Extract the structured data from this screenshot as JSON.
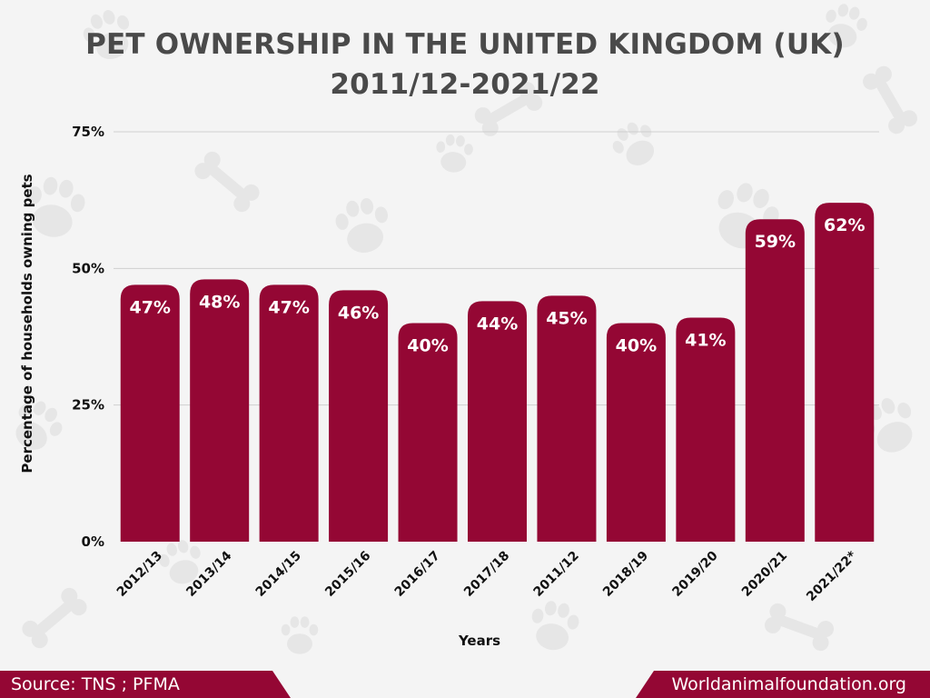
{
  "header": {
    "title_line1": "PET OWNERSHIP IN THE UNITED KINGDOM (UK)",
    "title_line2": "2011/12-2021/22"
  },
  "footer": {
    "source": "Source: TNS ; PFMA",
    "site": "Worldanimalfoundation.org"
  },
  "colors": {
    "bar": "#940734",
    "gridline": "#cfcfcf",
    "background": "#f4f4f4",
    "paw_watermark": "#e6e6e6"
  },
  "chart_data": {
    "type": "bar",
    "title": "PET OWNERSHIP IN THE UNITED KINGDOM (UK) 2011/12-2021/22",
    "xlabel": "Years",
    "ylabel": "Percentage of households owning pets",
    "categories": [
      "2012/13",
      "2013/14",
      "2014/15",
      "2015/16",
      "2016/17",
      "2017/18",
      "2011/12",
      "2018/19",
      "2019/20",
      "2020/21",
      "2021/22*"
    ],
    "values": [
      47,
      48,
      47,
      46,
      40,
      44,
      45,
      40,
      41,
      59,
      62
    ],
    "value_labels": [
      "47%",
      "48%",
      "47%",
      "46%",
      "40%",
      "44%",
      "45%",
      "40%",
      "41%",
      "59%",
      "62%"
    ],
    "ylim": [
      0,
      75
    ],
    "yticks": [
      0,
      25,
      50,
      75
    ],
    "ytick_labels": [
      "0%",
      "25%",
      "50%",
      "75%"
    ],
    "grid": true,
    "legend": "none"
  }
}
